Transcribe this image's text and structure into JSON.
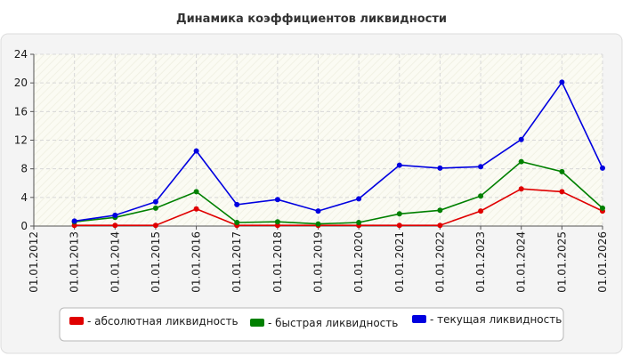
{
  "chart_data": {
    "type": "line",
    "title": "Динамика коэффициентов ликвидности",
    "xlabel": "",
    "ylabel": "",
    "ylim": [
      0,
      24
    ],
    "yticks": [
      0,
      4,
      8,
      12,
      16,
      20,
      24
    ],
    "grid": true,
    "legend_position": "bottom",
    "categories": [
      "01.01.2012",
      "01.01.2013",
      "01.01.2014",
      "01.01.2015",
      "01.01.2016",
      "01.01.2017",
      "01.01.2018",
      "01.01.2019",
      "01.01.2020",
      "01.01.2021",
      "01.01.2022",
      "01.01.2023",
      "01.01.2024",
      "01.01.2025",
      "01.01.2026"
    ],
    "series": [
      {
        "name": "- абсолютная ликвидность",
        "color": "#e00000",
        "values": [
          null,
          0.1,
          0.1,
          0.1,
          2.4,
          0.1,
          0.1,
          0.1,
          0.1,
          0.1,
          0.1,
          2.1,
          5.2,
          4.8,
          2.1
        ]
      },
      {
        "name": "- быстрая ликвидность",
        "color": "#008000",
        "values": [
          null,
          0.6,
          1.2,
          2.5,
          4.8,
          0.5,
          0.6,
          0.3,
          0.5,
          1.7,
          2.2,
          4.2,
          9.0,
          7.6,
          2.5
        ]
      },
      {
        "name": "- текущая ликвидность",
        "color": "#0000e0",
        "values": [
          null,
          0.7,
          1.5,
          3.4,
          10.5,
          3.0,
          3.7,
          2.1,
          3.8,
          8.5,
          8.1,
          8.3,
          12.1,
          20.1,
          8.1
        ]
      }
    ]
  }
}
